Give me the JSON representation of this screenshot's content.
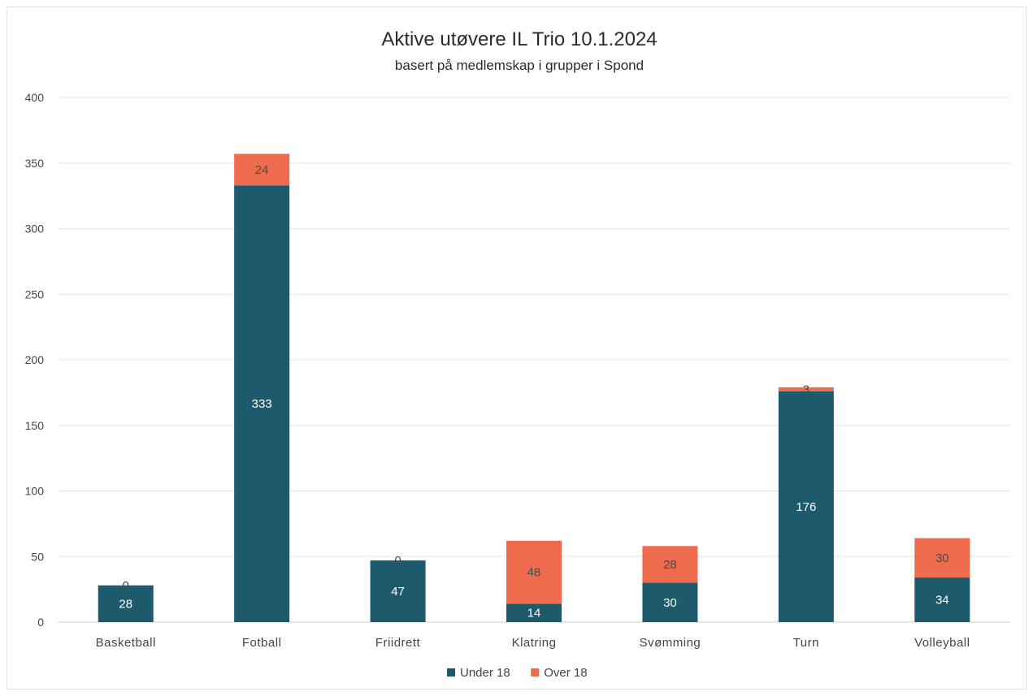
{
  "chart_data": {
    "type": "bar",
    "stacked": true,
    "title": "Aktive utøvere IL Trio 10.1.2024",
    "subtitle": "basert på medlemskap i grupper i Spond",
    "xlabel": "",
    "ylabel": "",
    "ylim": [
      0,
      400
    ],
    "yticks": [
      0,
      50,
      100,
      150,
      200,
      250,
      300,
      350,
      400
    ],
    "grid": true,
    "legend_position": "bottom",
    "categories": [
      "Basketball",
      "Fotball",
      "Friidrett",
      "Klatring",
      "Svømming",
      "Turn",
      "Volleyball"
    ],
    "series": [
      {
        "name": "Under 18",
        "color": "#1d5a6c",
        "label_color": "#ffffff",
        "values": [
          28,
          333,
          47,
          14,
          30,
          176,
          34
        ]
      },
      {
        "name": "Over 18",
        "color": "#ef6b4d",
        "label_color": "#4a4a4a",
        "values": [
          0,
          24,
          0,
          48,
          28,
          3,
          30
        ]
      }
    ]
  }
}
